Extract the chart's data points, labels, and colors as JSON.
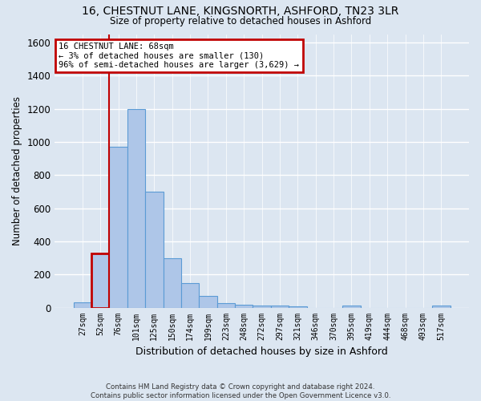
{
  "title_line1": "16, CHESTNUT LANE, KINGSNORTH, ASHFORD, TN23 3LR",
  "title_line2": "Size of property relative to detached houses in Ashford",
  "xlabel": "Distribution of detached houses by size in Ashford",
  "ylabel": "Number of detached properties",
  "footnote": "Contains HM Land Registry data © Crown copyright and database right 2024.\nContains public sector information licensed under the Open Government Licence v3.0.",
  "annotation_line1": "16 CHESTNUT LANE: 68sqm",
  "annotation_line2": "← 3% of detached houses are smaller (130)",
  "annotation_line3": "96% of semi-detached houses are larger (3,629) →",
  "bar_color": "#aec6e8",
  "bar_edge_color": "#5b9bd5",
  "highlight_bar_index": 1,
  "highlight_bar_color": "#c00000",
  "annotation_box_edge_color": "#c00000",
  "background_color": "#dce6f1",
  "axes_bg_color": "#dce6f1",
  "grid_color": "#ffffff",
  "categories": [
    "27sqm",
    "52sqm",
    "76sqm",
    "101sqm",
    "125sqm",
    "150sqm",
    "174sqm",
    "199sqm",
    "223sqm",
    "248sqm",
    "272sqm",
    "297sqm",
    "321sqm",
    "346sqm",
    "370sqm",
    "395sqm",
    "419sqm",
    "444sqm",
    "468sqm",
    "493sqm",
    "517sqm"
  ],
  "values": [
    30,
    325,
    968,
    1200,
    700,
    300,
    150,
    70,
    25,
    18,
    13,
    10,
    8,
    0,
    0,
    12,
    0,
    0,
    0,
    0,
    12
  ],
  "ylim": [
    0,
    1650
  ],
  "yticks": [
    0,
    200,
    400,
    600,
    800,
    1000,
    1200,
    1400,
    1600
  ],
  "vline_x": 1.5
}
